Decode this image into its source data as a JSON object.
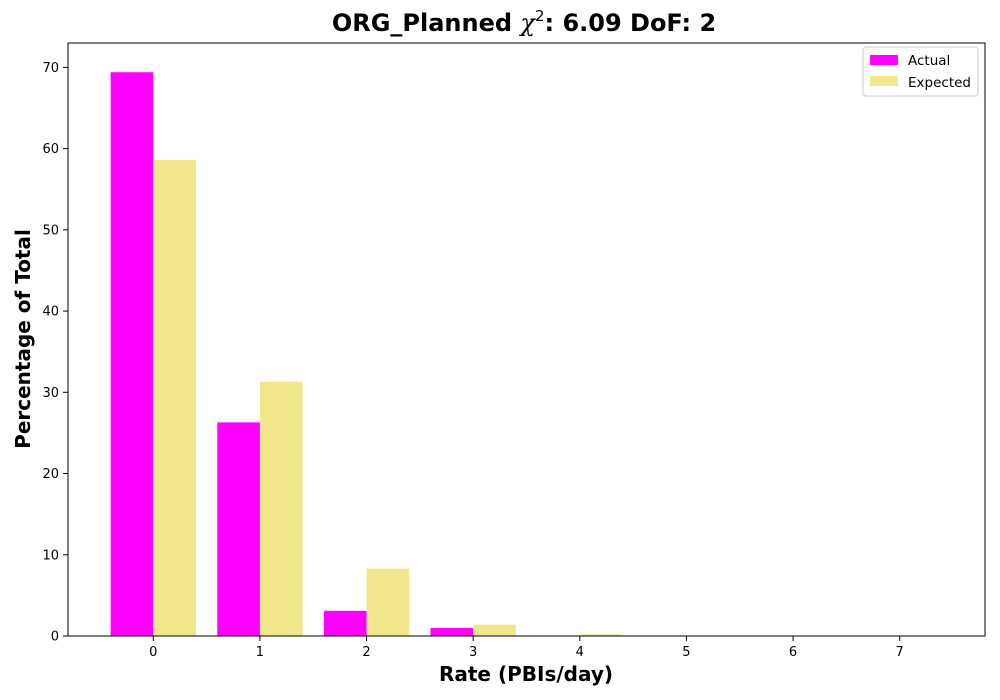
{
  "chart_data": {
    "type": "bar",
    "title_main": "ORG_Planned ",
    "title_chi_symbol": "χ",
    "title_chi_exp": "2",
    "title_rest": ": 6.09 DoF: 2",
    "xlabel": "Rate (PBIs/day)",
    "ylabel": "Percentage of Total",
    "categories": [
      "0",
      "1",
      "2",
      "3",
      "4",
      "5",
      "6",
      "7"
    ],
    "x": [
      0,
      1,
      2,
      3,
      4,
      5,
      6,
      7
    ],
    "series": [
      {
        "name": "Actual",
        "color": "#ff00ff",
        "values": [
          69.4,
          26.3,
          3.1,
          1.0,
          0,
          0,
          0,
          0
        ]
      },
      {
        "name": "Expected",
        "color": "#f0e68c",
        "values": [
          58.6,
          31.3,
          8.3,
          1.4,
          0.2,
          0.02,
          0,
          0
        ]
      }
    ],
    "yticks": [
      "0",
      "10",
      "20",
      "30",
      "40",
      "50",
      "60",
      "70"
    ],
    "xlim": [
      -0.8,
      7.8
    ],
    "ylim": [
      0,
      73
    ],
    "grid": false,
    "legend": "top-right"
  }
}
